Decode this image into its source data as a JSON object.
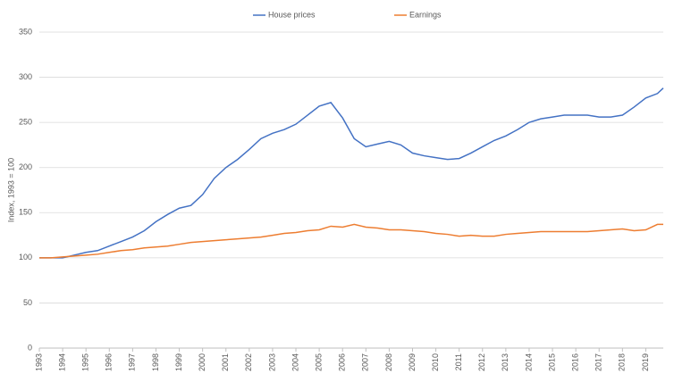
{
  "chart_data": {
    "type": "line",
    "y_label": "Index, 1993 = 100",
    "x": [
      1993,
      1993.5,
      1994,
      1994.5,
      1995,
      1995.5,
      1996,
      1996.5,
      1997,
      1997.5,
      1998,
      1998.5,
      1999,
      1999.5,
      2000,
      2000.5,
      2001,
      2001.5,
      2002,
      2002.5,
      2003,
      2003.5,
      2004,
      2004.5,
      2005,
      2005.5,
      2006,
      2006.5,
      2007,
      2007.5,
      2008,
      2008.5,
      2009,
      2009.5,
      2010,
      2010.5,
      2011,
      2011.5,
      2012,
      2012.5,
      2013,
      2013.5,
      2014,
      2014.5,
      2015,
      2015.5,
      2016,
      2016.5,
      2017,
      2017.5,
      2018,
      2018.5,
      2019,
      2019.5,
      2019.75
    ],
    "series": [
      {
        "name": "House prices",
        "color": "#4472c4",
        "values": [
          100,
          100,
          100,
          103,
          106,
          108,
          113,
          118,
          123,
          130,
          140,
          148,
          155,
          158,
          170,
          188,
          200,
          209,
          220,
          232,
          238,
          242,
          248,
          258,
          268,
          272,
          255,
          232,
          223,
          226,
          229,
          225,
          216,
          213,
          211,
          209,
          210,
          216,
          223,
          230,
          235,
          242,
          250,
          254,
          256,
          258,
          258,
          258,
          256,
          256,
          258,
          267,
          277,
          282,
          288
        ]
      },
      {
        "name": "Earnings",
        "color": "#ed7d31",
        "values": [
          100,
          100,
          101,
          102,
          103,
          104,
          106,
          108,
          109,
          111,
          112,
          113,
          115,
          117,
          118,
          119,
          120,
          121,
          122,
          123,
          125,
          127,
          128,
          130,
          131,
          135,
          134,
          137,
          134,
          133,
          131,
          131,
          130,
          129,
          127,
          126,
          124,
          125,
          124,
          124,
          126,
          127,
          128,
          129,
          129,
          129,
          129,
          129,
          130,
          131,
          132,
          130,
          131,
          137,
          137
        ]
      }
    ],
    "xlim": [
      1993,
      2019.75
    ],
    "xticks": [
      1993,
      1994,
      1995,
      1996,
      1997,
      1998,
      1999,
      2000,
      2001,
      2002,
      2003,
      2004,
      2005,
      2006,
      2007,
      2008,
      2009,
      2010,
      2011,
      2012,
      2013,
      2014,
      2015,
      2016,
      2017,
      2018,
      2019
    ],
    "ylim": [
      0,
      350
    ],
    "yticks": [
      0,
      50,
      100,
      150,
      200,
      250,
      300,
      350
    ],
    "grid": true,
    "legend": "top"
  }
}
